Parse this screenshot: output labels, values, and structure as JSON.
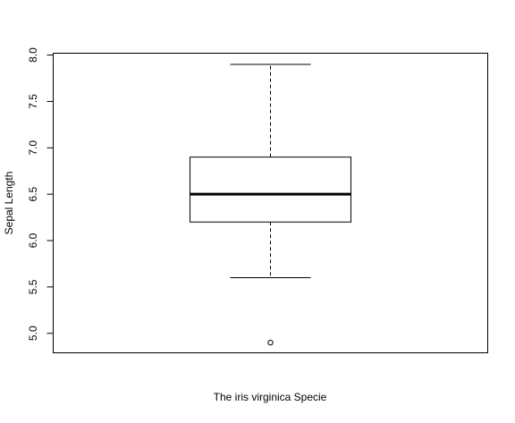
{
  "chart_data": {
    "type": "box",
    "title": "",
    "xlabel": "The iris virginica Specie",
    "ylabel": "Sepal Length",
    "ylim": [
      4.79,
      8.02
    ],
    "yticks": [
      5.0,
      5.5,
      6.0,
      6.5,
      7.0,
      7.5,
      8.0
    ],
    "ytick_labels": [
      "5.0",
      "5.5",
      "6.0",
      "6.5",
      "7.0",
      "7.5",
      "8.0"
    ],
    "grid": false,
    "boxes": [
      {
        "whisker_low": 5.6,
        "q1": 6.2,
        "median": 6.5,
        "q3": 6.9,
        "whisker_high": 7.9,
        "outliers": [
          4.9
        ]
      }
    ]
  }
}
